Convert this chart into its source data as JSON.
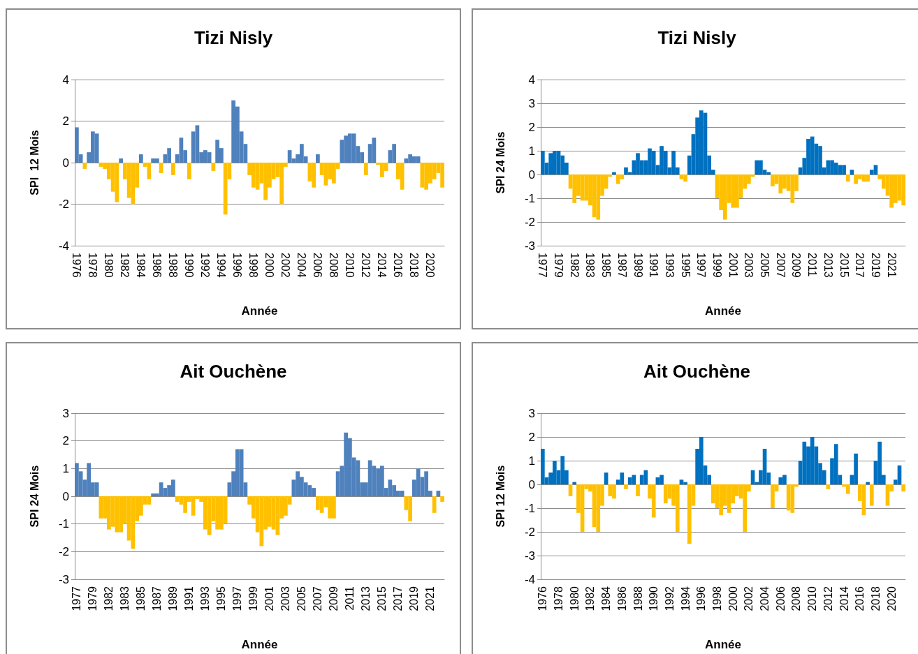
{
  "chart_data": [
    {
      "type": "bar",
      "title": "Tizi Nisly",
      "xlabel": "Année",
      "ylabel": "SPI  12 Mois",
      "stacked": true,
      "grid": "y",
      "ylim": [
        -4,
        4
      ],
      "yticks": [
        -4,
        -2,
        0,
        2,
        4
      ],
      "categories": [
        "1976",
        null,
        null,
        null,
        "1978",
        null,
        null,
        null,
        "1980",
        null,
        null,
        null,
        "1982",
        null,
        null,
        null,
        "1984",
        null,
        null,
        null,
        "1986",
        null,
        null,
        null,
        "1988",
        null,
        null,
        null,
        "1990",
        null,
        null,
        null,
        "1992",
        null,
        null,
        null,
        "1994",
        null,
        null,
        null,
        "1996",
        null,
        null,
        null,
        "1998",
        null,
        null,
        null,
        "2000",
        null,
        null,
        null,
        "2002",
        null,
        null,
        null,
        "2004",
        null,
        null,
        null,
        "2006",
        null,
        null,
        null,
        "2008",
        null,
        null,
        null,
        "2010",
        null,
        null,
        null,
        "2012",
        null,
        null,
        null,
        "2014",
        null,
        null,
        null,
        "2016",
        null,
        null,
        null,
        "2018",
        null,
        null,
        null,
        "2020",
        null,
        null,
        null
      ],
      "series": [
        {
          "color": "#4f81bd",
          "values": [
            1.7,
            0.4,
            null,
            0.5,
            1.5,
            1.4,
            null,
            null,
            null,
            null,
            null,
            0.2,
            null,
            null,
            null,
            null,
            0.4,
            null,
            null,
            0.2,
            0.2,
            null,
            0.4,
            0.7,
            null,
            0.4,
            1.2,
            0.6,
            null,
            1.5,
            1.8,
            0.5,
            0.6,
            0.5,
            null,
            1.1,
            0.7,
            null,
            null,
            3.0,
            2.7,
            1.5,
            0.9,
            null,
            null,
            null,
            null,
            null,
            null,
            null,
            null,
            null,
            null,
            0.6,
            0.2,
            0.4,
            0.9,
            0.3,
            null,
            null,
            0.4,
            null,
            null,
            null,
            null,
            null,
            1.1,
            1.3,
            1.4,
            1.4,
            0.8,
            0.5,
            null,
            0.9,
            1.2,
            null,
            null,
            null,
            0.6,
            0.9,
            null,
            null,
            0.2,
            0.4,
            0.3,
            0.3,
            null,
            null,
            null,
            null,
            null,
            null
          ]
        },
        {
          "color": "#ffc000",
          "values": [
            null,
            null,
            -0.3,
            null,
            null,
            null,
            -0.2,
            -0.3,
            -0.8,
            -1.4,
            -1.9,
            null,
            -0.8,
            -1.7,
            -2.0,
            -1.2,
            null,
            -0.2,
            -0.8,
            null,
            null,
            -0.5,
            null,
            null,
            -0.6,
            null,
            null,
            null,
            -0.8,
            null,
            null,
            null,
            null,
            null,
            -0.4,
            null,
            null,
            -2.5,
            -0.8,
            null,
            null,
            null,
            null,
            -0.6,
            -1.2,
            -1.3,
            -1.0,
            -1.8,
            -1.2,
            -0.8,
            -0.7,
            -2.0,
            -0.2,
            null,
            null,
            null,
            null,
            null,
            -0.9,
            -1.2,
            null,
            -0.6,
            -1.1,
            -0.8,
            -1.0,
            -0.3,
            null,
            null,
            null,
            null,
            null,
            null,
            -0.6,
            null,
            null,
            -0.1,
            -0.7,
            -0.4,
            null,
            null,
            -0.8,
            -1.3,
            null,
            null,
            null,
            null,
            -1.2,
            -1.3,
            -1.0,
            -0.8,
            -0.5,
            -1.2
          ]
        }
      ]
    },
    {
      "type": "bar",
      "title": "Tizi Nisly",
      "xlabel": "Année",
      "ylabel": "SPI 24 Mois",
      "stacked": true,
      "grid": "y",
      "ylim": [
        -3,
        4
      ],
      "yticks": [
        -3,
        -2,
        -1,
        0,
        1,
        2,
        3,
        4
      ],
      "categories": [
        "1977",
        null,
        null,
        null,
        "1979",
        null,
        null,
        null,
        "1982",
        null,
        null,
        null,
        "1983",
        null,
        null,
        null,
        "1985",
        null,
        null,
        null,
        "1987",
        null,
        null,
        null,
        "1989",
        null,
        null,
        null,
        "1991",
        null,
        null,
        null,
        "1993",
        null,
        null,
        null,
        "1995",
        null,
        null,
        null,
        "1997",
        null,
        null,
        null,
        "1999",
        null,
        null,
        null,
        "2001",
        null,
        null,
        null,
        "2003",
        null,
        null,
        null,
        "2005",
        null,
        null,
        null,
        "2007",
        null,
        null,
        null,
        "2009",
        null,
        null,
        null,
        "2011",
        null,
        null,
        null,
        "2013",
        null,
        null,
        null,
        "2015",
        null,
        null,
        null,
        "2017",
        null,
        null,
        null,
        "2019",
        null,
        null,
        null,
        "2021",
        null,
        null,
        null
      ],
      "series": [
        {
          "color": "#0070c0",
          "values": [
            1.0,
            0.5,
            0.9,
            1.0,
            1.0,
            0.8,
            0.5,
            null,
            null,
            null,
            null,
            null,
            null,
            null,
            null,
            null,
            null,
            null,
            0.1,
            null,
            null,
            0.3,
            0.1,
            0.6,
            0.9,
            0.6,
            0.6,
            1.1,
            1.0,
            0.4,
            1.2,
            1.0,
            0.3,
            1.0,
            0.3,
            null,
            null,
            0.8,
            1.7,
            2.4,
            2.7,
            2.6,
            0.8,
            0.2,
            null,
            null,
            null,
            null,
            null,
            null,
            null,
            null,
            null,
            null,
            0.6,
            0.6,
            0.2,
            0.1,
            null,
            null,
            null,
            null,
            null,
            null,
            null,
            0.3,
            0.7,
            1.5,
            1.6,
            1.3,
            1.2,
            0.3,
            0.6,
            0.6,
            0.5,
            0.4,
            0.4,
            null,
            0.2,
            null,
            null,
            null,
            null,
            0.2,
            0.4,
            null,
            null,
            null,
            null,
            null,
            null,
            null
          ]
        },
        {
          "color": "#ffc000",
          "values": [
            null,
            null,
            null,
            null,
            null,
            null,
            null,
            -0.6,
            -1.2,
            -0.9,
            -1.1,
            -1.1,
            -1.3,
            -1.8,
            -1.9,
            -0.9,
            -0.6,
            -0.1,
            null,
            -0.4,
            -0.2,
            null,
            null,
            null,
            null,
            null,
            null,
            null,
            null,
            null,
            null,
            null,
            null,
            null,
            null,
            -0.2,
            -0.3,
            null,
            null,
            null,
            null,
            null,
            null,
            null,
            -1.0,
            -1.5,
            -1.9,
            -1.2,
            -1.4,
            -1.4,
            -1.0,
            -0.6,
            -0.4,
            -0.1,
            null,
            null,
            null,
            null,
            -0.5,
            -0.4,
            -0.8,
            -0.6,
            -0.7,
            -1.2,
            -0.7,
            null,
            null,
            null,
            null,
            null,
            null,
            null,
            null,
            null,
            null,
            null,
            null,
            -0.3,
            null,
            -0.4,
            -0.2,
            -0.3,
            -0.3,
            null,
            null,
            -0.2,
            -0.6,
            -0.9,
            -1.4,
            -1.2,
            -1.1,
            -1.3
          ]
        }
      ]
    },
    {
      "type": "bar",
      "title": "Ait Ouchène",
      "xlabel": "Année",
      "ylabel": "SPI 24 Mois",
      "stacked": true,
      "grid": "y",
      "ylim": [
        -3,
        3
      ],
      "yticks": [
        -3,
        -2,
        -1,
        0,
        1,
        2,
        3
      ],
      "categories": [
        "1977",
        null,
        null,
        null,
        "1979",
        null,
        null,
        null,
        "1982",
        null,
        null,
        null,
        "1983",
        null,
        null,
        null,
        "1985",
        null,
        null,
        null,
        "1987",
        null,
        null,
        null,
        "1989",
        null,
        null,
        null,
        "1991",
        null,
        null,
        null,
        "1993",
        null,
        null,
        null,
        "1995",
        null,
        null,
        null,
        "1997",
        null,
        null,
        null,
        "1999",
        null,
        null,
        null,
        "2001",
        null,
        null,
        null,
        "2003",
        null,
        null,
        null,
        "2005",
        null,
        null,
        null,
        "2007",
        null,
        null,
        null,
        "2009",
        null,
        null,
        null,
        "2011",
        null,
        null,
        null,
        "2013",
        null,
        null,
        null,
        "2015",
        null,
        null,
        null,
        "2017",
        null,
        null,
        null,
        "2019",
        null,
        null,
        null,
        "2021",
        null,
        null,
        null
      ],
      "series": [
        {
          "color": "#4f81bd",
          "values": [
            1.2,
            0.9,
            0.6,
            1.2,
            0.5,
            0.5,
            null,
            null,
            null,
            null,
            null,
            null,
            null,
            null,
            null,
            null,
            null,
            null,
            null,
            0.1,
            0.1,
            0.5,
            0.3,
            0.4,
            0.6,
            null,
            null,
            null,
            null,
            null,
            null,
            null,
            null,
            null,
            null,
            null,
            null,
            null,
            0.5,
            0.9,
            1.7,
            1.7,
            0.5,
            null,
            null,
            null,
            null,
            null,
            null,
            null,
            null,
            null,
            null,
            null,
            0.6,
            0.9,
            0.7,
            0.5,
            0.4,
            0.3,
            null,
            null,
            null,
            null,
            null,
            0.9,
            1.1,
            2.3,
            2.1,
            1.4,
            1.3,
            0.5,
            0.5,
            1.3,
            1.1,
            1.0,
            1.1,
            0.3,
            0.6,
            0.4,
            0.2,
            0.2,
            null,
            null,
            0.6,
            1.0,
            0.7,
            0.9,
            0.2,
            null,
            0.2,
            null
          ]
        },
        {
          "color": "#ffc000",
          "values": [
            null,
            null,
            null,
            null,
            null,
            null,
            -0.8,
            -0.8,
            -1.2,
            -1.1,
            -1.3,
            -1.3,
            -1.0,
            -1.6,
            -1.9,
            -0.9,
            -0.7,
            -0.3,
            -0.3,
            null,
            null,
            null,
            null,
            null,
            null,
            -0.2,
            -0.3,
            -0.6,
            -0.2,
            -0.7,
            -0.1,
            -0.2,
            -1.2,
            -1.4,
            -0.9,
            -1.2,
            -1.2,
            -1.0,
            null,
            null,
            null,
            null,
            null,
            -0.3,
            -0.8,
            -1.3,
            -1.8,
            -1.2,
            -1.1,
            -1.2,
            -1.4,
            -0.8,
            -0.7,
            -0.3,
            null,
            null,
            null,
            null,
            null,
            null,
            -0.5,
            -0.6,
            -0.4,
            -0.8,
            -0.8,
            null,
            null,
            null,
            null,
            null,
            null,
            null,
            null,
            null,
            null,
            null,
            null,
            null,
            null,
            null,
            null,
            null,
            -0.5,
            -0.9,
            null,
            null,
            null,
            null,
            null,
            -0.6,
            null,
            -0.2
          ]
        }
      ]
    },
    {
      "type": "bar",
      "title": "Ait Ouchène",
      "xlabel": "Année",
      "ylabel": "SPI 12 Mois",
      "stacked": true,
      "grid": "y",
      "ylim": [
        -4,
        3
      ],
      "yticks": [
        -4,
        -3,
        -2,
        -1,
        0,
        1,
        2,
        3
      ],
      "categories": [
        "1976",
        null,
        null,
        null,
        "1978",
        null,
        null,
        null,
        "1980",
        null,
        null,
        null,
        "1982",
        null,
        null,
        null,
        "1984",
        null,
        null,
        null,
        "1986",
        null,
        null,
        null,
        "1988",
        null,
        null,
        null,
        "1990",
        null,
        null,
        null,
        "1992",
        null,
        null,
        null,
        "1994",
        null,
        null,
        null,
        "1996",
        null,
        null,
        null,
        "1998",
        null,
        null,
        null,
        "2000",
        null,
        null,
        null,
        "2002",
        null,
        null,
        null,
        "2004",
        null,
        null,
        null,
        "2006",
        null,
        null,
        null,
        "2008",
        null,
        null,
        null,
        "2010",
        null,
        null,
        null,
        "2012",
        null,
        null,
        null,
        "2014",
        null,
        null,
        null,
        "2016",
        null,
        null,
        null,
        "2018",
        null,
        null,
        null,
        "2020",
        null,
        null,
        null
      ],
      "series": [
        {
          "color": "#0070c0",
          "values": [
            1.5,
            0.3,
            0.5,
            1.0,
            0.6,
            1.2,
            0.6,
            null,
            0.1,
            null,
            null,
            null,
            null,
            null,
            null,
            null,
            0.5,
            null,
            null,
            0.2,
            0.5,
            null,
            0.3,
            0.4,
            null,
            0.4,
            0.6,
            null,
            null,
            0.3,
            0.4,
            null,
            null,
            null,
            null,
            0.2,
            0.1,
            null,
            null,
            1.5,
            2.0,
            0.8,
            0.4,
            null,
            null,
            null,
            null,
            null,
            null,
            null,
            null,
            null,
            null,
            0.6,
            0.1,
            0.6,
            1.5,
            0.5,
            null,
            null,
            0.3,
            0.4,
            null,
            null,
            null,
            1.0,
            1.8,
            1.6,
            2.0,
            1.6,
            0.9,
            0.6,
            null,
            1.1,
            1.7,
            0.4,
            null,
            null,
            0.4,
            1.3,
            null,
            null,
            0.1,
            null,
            1.0,
            1.8,
            0.4,
            null,
            null,
            0.2,
            0.8,
            null
          ]
        },
        {
          "color": "#ffc000",
          "values": [
            null,
            null,
            null,
            null,
            null,
            null,
            null,
            -0.5,
            null,
            -1.2,
            -2.0,
            -0.2,
            -0.3,
            -1.8,
            -2.0,
            -0.9,
            null,
            -0.5,
            -0.6,
            null,
            null,
            -0.2,
            null,
            null,
            -0.5,
            null,
            null,
            -0.6,
            -1.4,
            null,
            null,
            -0.8,
            -0.6,
            -0.9,
            -2.0,
            null,
            null,
            -2.5,
            -0.9,
            null,
            null,
            null,
            null,
            -0.8,
            -1.0,
            -1.3,
            -0.9,
            -1.2,
            -0.8,
            -0.5,
            -0.6,
            -2.0,
            -0.3,
            null,
            null,
            null,
            null,
            null,
            -1.0,
            -0.3,
            null,
            null,
            -1.1,
            -1.2,
            -0.1,
            null,
            null,
            null,
            null,
            null,
            null,
            null,
            -0.2,
            null,
            null,
            null,
            -0.1,
            -0.4,
            null,
            null,
            -0.7,
            -1.3,
            null,
            -0.9,
            null,
            null,
            null,
            -0.9,
            -0.3,
            null,
            null,
            -0.3
          ]
        }
      ]
    }
  ]
}
